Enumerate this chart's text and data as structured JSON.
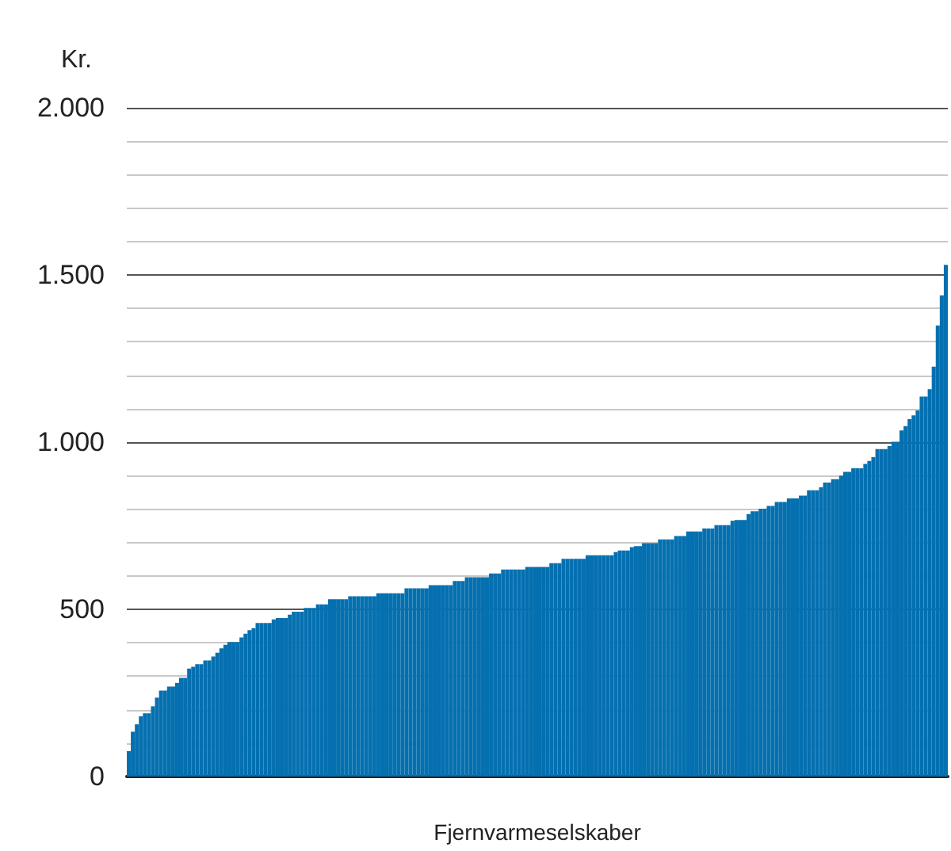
{
  "chart_data": {
    "type": "bar",
    "ylabel": "Kr.",
    "xlabel": "Fjernvarmeselskaber",
    "color": "#0570b0",
    "grid": "y",
    "tick_labels": "y",
    "ylim": [
      0,
      2000
    ],
    "yticks": [
      0,
      {
        "value": 100,
        "label": null
      },
      {
        "value": 200,
        "label": null
      },
      {
        "value": 300,
        "label": null
      },
      {
        "value": 400,
        "label": null
      },
      500,
      {
        "value": 600,
        "label": null
      },
      {
        "value": 700,
        "label": null
      },
      {
        "value": 800,
        "label": null
      },
      {
        "value": 900,
        "label": null
      },
      {
        "value": 1000,
        "label": "1.000"
      },
      {
        "value": 1100,
        "label": null
      },
      {
        "value": 1200,
        "label": null
      },
      {
        "value": 1300,
        "label": null
      },
      {
        "value": 1400,
        "label": null
      },
      {
        "value": 1500,
        "label": "1.500"
      },
      {
        "value": 1600,
        "label": null
      },
      {
        "value": 1700,
        "label": null
      },
      {
        "value": 1800,
        "label": null
      },
      {
        "value": 1900,
        "label": null
      },
      {
        "value": 2000,
        "label": "2.000"
      }
    ],
    "categories": [
      null,
      null,
      null,
      null,
      null,
      null,
      null,
      null,
      null,
      null,
      null,
      null,
      null,
      null,
      null,
      null,
      null,
      null,
      null,
      null,
      null,
      null,
      null,
      null,
      null,
      null,
      null,
      null,
      null,
      null,
      null,
      null,
      null,
      null,
      null,
      null,
      null,
      null,
      null,
      null,
      null,
      null,
      null,
      null,
      null,
      null,
      null,
      null,
      null,
      null,
      null,
      null,
      null,
      null,
      null,
      null,
      null,
      null,
      null,
      null,
      null,
      null,
      null,
      null,
      null,
      null,
      null,
      null,
      null,
      null,
      null,
      null,
      null,
      null,
      null,
      null,
      null,
      null,
      null,
      null,
      null,
      null,
      null,
      null,
      null,
      null,
      null,
      null,
      null,
      null,
      null,
      null,
      null,
      null,
      null,
      null,
      null,
      null,
      null,
      null,
      null,
      null,
      null,
      null,
      null,
      null,
      null,
      null,
      null,
      null,
      null,
      null,
      null,
      null,
      null,
      null,
      null,
      null,
      null,
      null,
      null,
      null,
      null,
      null,
      null,
      null,
      null,
      null,
      null,
      null,
      null,
      null,
      null,
      null,
      null,
      null,
      null,
      null,
      null,
      null,
      null,
      null,
      null,
      null,
      null,
      null,
      null,
      null,
      null,
      null,
      null,
      null,
      null,
      null,
      null,
      null,
      null,
      null,
      null,
      null,
      null,
      null,
      null,
      null,
      null,
      null,
      null,
      null,
      null,
      null,
      null,
      null,
      null,
      null,
      null,
      null,
      null,
      null,
      null,
      null,
      null,
      null,
      null,
      null,
      null,
      null,
      null,
      null,
      null,
      null,
      null,
      null,
      null,
      null,
      null,
      null,
      null,
      null,
      null,
      null,
      null,
      null,
      null,
      null
    ],
    "values": [
      76,
      134,
      156,
      180,
      189,
      189,
      210,
      236,
      257,
      257,
      269,
      269,
      280,
      295,
      295,
      323,
      328,
      336,
      336,
      347,
      347,
      359,
      370,
      383,
      394,
      402,
      402,
      402,
      416,
      427,
      438,
      444,
      459,
      459,
      459,
      459,
      470,
      474,
      474,
      474,
      484,
      493,
      493,
      493,
      504,
      504,
      504,
      515,
      515,
      515,
      530,
      530,
      530,
      530,
      530,
      539,
      539,
      539,
      539,
      539,
      539,
      539,
      548,
      548,
      548,
      548,
      548,
      548,
      548,
      563,
      563,
      563,
      563,
      563,
      563,
      572,
      572,
      572,
      572,
      572,
      572,
      585,
      585,
      585,
      596,
      596,
      596,
      596,
      596,
      596,
      607,
      607,
      607,
      619,
      619,
      619,
      619,
      619,
      619,
      627,
      627,
      627,
      627,
      627,
      627,
      638,
      638,
      638,
      651,
      651,
      651,
      651,
      651,
      651,
      662,
      662,
      662,
      662,
      662,
      662,
      662,
      671,
      676,
      676,
      676,
      686,
      689,
      689,
      698,
      698,
      698,
      698,
      709,
      709,
      709,
      709,
      719,
      719,
      719,
      733,
      733,
      733,
      733,
      742,
      742,
      742,
      752,
      752,
      752,
      752,
      765,
      767,
      767,
      767,
      785,
      793,
      793,
      801,
      801,
      809,
      809,
      821,
      821,
      821,
      832,
      832,
      832,
      840,
      840,
      856,
      856,
      856,
      865,
      879,
      879,
      889,
      889,
      900,
      911,
      911,
      922,
      922,
      922,
      935,
      944,
      955,
      979,
      979,
      979,
      988,
      1001,
      1001,
      1035,
      1048,
      1069,
      1080,
      1095,
      1136,
      1136,
      1158,
      1226,
      1349,
      1439,
      1530
    ]
  }
}
